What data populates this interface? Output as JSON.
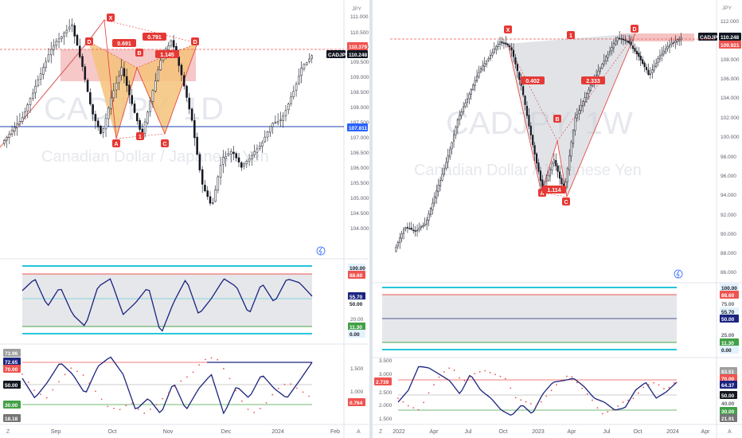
{
  "colors": {
    "candle_up": "#ffffff",
    "candle_down": "#131722",
    "pattern_red": "#e53935",
    "pattern_fill": "#f4c27a",
    "grey_fill": "#c9ccd3",
    "support_blue": "#1e40af",
    "osc_line": "#1a237e",
    "cyan": "#26c6da",
    "green": "#43a047",
    "red": "#ef5350"
  },
  "left": {
    "watermark_symbol": "CADJPY, 1D",
    "watermark_name": "Canadian Dollar / Japanese Yen",
    "currency": "JPY",
    "price_ticks": [
      "111.000",
      "110.500",
      "110.000",
      "109.500",
      "109.000",
      "108.500",
      "108.000",
      "107.500",
      "107.000",
      "106.500",
      "106.000",
      "105.500",
      "105.000",
      "104.500",
      "104.000"
    ],
    "price_badges": [
      {
        "label": "110.379",
        "kind": "red"
      },
      {
        "label": "CADJPY",
        "kind": "black"
      },
      {
        "label": "110.248",
        "kind": "dark"
      },
      {
        "label": "107.811",
        "kind": "blue"
      }
    ],
    "pattern_labels": [
      "X",
      "D",
      "B",
      "D",
      "A",
      "C"
    ],
    "ratio_labels": [
      "0.691",
      "0.791",
      "1.145",
      "1"
    ],
    "rsi_badges": [
      "100.00",
      "88.60",
      "55.70",
      "50.00",
      "11.30",
      "0.00"
    ],
    "rsi_ticks": [
      "20.00"
    ],
    "stoch_badges": [
      "73.96",
      "72.65",
      "70.00",
      "50.00",
      "30.00",
      "18.18",
      "0.764"
    ],
    "stoch_ticks": [
      "1.500",
      "1.000"
    ],
    "time_labels": [
      "Sep",
      "Oct",
      "Nov",
      "Dec",
      "2024",
      "Feb"
    ],
    "corner_left": "Z",
    "corner_right": "A"
  },
  "right": {
    "watermark_symbol": "CADJPY, 1W",
    "watermark_name": "Canadian Dollar / Japanese Yen",
    "currency": "JPY",
    "price_ticks": [
      "112.000",
      "110.000",
      "108.000",
      "106.000",
      "104.000",
      "102.000",
      "100.000",
      "98.000",
      "96.000",
      "94.000",
      "92.000",
      "90.000",
      "88.000",
      "86.000"
    ],
    "price_badges": [
      {
        "label": "CADJPY",
        "kind": "black"
      },
      {
        "label": "110.248",
        "kind": "dark"
      },
      {
        "label": "109.921",
        "kind": "red"
      }
    ],
    "pattern_labels": [
      "X",
      "1",
      "D",
      "B",
      "A",
      "C"
    ],
    "ratio_labels": [
      "0.402",
      "2.333",
      "1.114"
    ],
    "rsi_badges": [
      "100.00",
      "88.60",
      "75.00",
      "55.70",
      "50.00",
      "25.00",
      "11.30",
      "0.00"
    ],
    "stoch_badges": [
      "83.51",
      "70.00",
      "64.37",
      "50.00",
      "40.00",
      "30.00",
      "21.91"
    ],
    "stoch_ticks": [
      "3.500",
      "3.000",
      "2.739",
      "2.500",
      "2.000",
      "1.500"
    ],
    "time_labels": [
      "2022",
      "Apr",
      "Jul",
      "Oct",
      "2023",
      "Apr",
      "Jul",
      "Oct",
      "2024",
      "Apr"
    ],
    "corner_left": "Z",
    "corner_right": "A"
  }
}
